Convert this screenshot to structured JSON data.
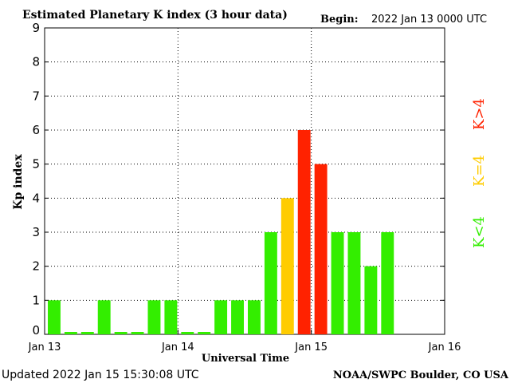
{
  "header": {
    "title": "Estimated Planetary K index (3 hour data)",
    "begin_label": "Begin:",
    "begin_value": "2022 Jan 13 0000 UTC"
  },
  "footer": {
    "updated": "Updated 2022 Jan 15 15:30:08 UTC",
    "source": "NOAA/SWPC Boulder, CO USA"
  },
  "legend": {
    "low": "K<4",
    "mid": "K=4",
    "high": "K>4",
    "colors": {
      "low": "#33ee00",
      "mid": "#ffcc00",
      "high": "#ff2200"
    }
  },
  "chart_data": {
    "type": "bar",
    "title": "Estimated Planetary K index (3 hour data)",
    "xlabel": "Universal Time",
    "ylabel": "Kp index",
    "ylim": [
      0,
      9
    ],
    "yticks": [
      "0",
      "1",
      "2",
      "3",
      "4",
      "5",
      "6",
      "7",
      "8",
      "9"
    ],
    "xticks": [
      "Jan 13",
      "Jan 14",
      "Jan 15",
      "Jan 16"
    ],
    "bars_per_day": 8,
    "values": [
      1,
      0,
      0,
      1,
      0,
      0,
      1,
      1,
      0,
      0,
      1,
      1,
      1,
      3,
      4,
      6,
      5,
      3,
      3,
      2,
      3
    ],
    "grid": true
  }
}
